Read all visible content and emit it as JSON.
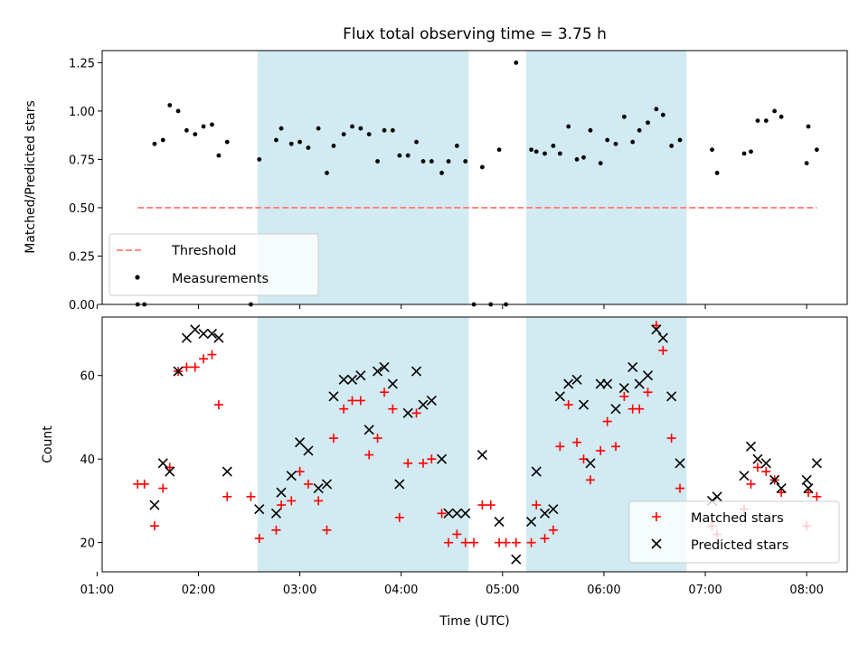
{
  "chart_data": [
    {
      "type": "scatter",
      "title": "Flux total observing time = 3.75 h",
      "xlabel": "",
      "ylabel": "Matched/Predicted stars",
      "xlim": [
        "01:03",
        "08:24"
      ],
      "ylim": [
        0,
        1.3125
      ],
      "yticks": [
        0.0,
        0.25,
        0.5,
        0.75,
        1.0,
        1.25
      ],
      "ytick_labels": [
        "0.00",
        "0.25",
        "0.50",
        "0.75",
        "1.00",
        "1.25"
      ],
      "shaded_intervals": [
        [
          "02:35",
          "04:40"
        ],
        [
          "05:14",
          "06:49"
        ]
      ],
      "shade_color": "#add8e6",
      "legend_position": "lower-left",
      "threshold": {
        "name": "Threshold",
        "value": 0.5,
        "x_range": [
          "01:24",
          "08:06"
        ],
        "color": "#ff7f7f",
        "style": "dashed"
      },
      "series": [
        {
          "name": "Measurements",
          "color": "#000000",
          "marker": "dot",
          "points": [
            [
              "01:24",
              0.0
            ],
            [
              "01:28",
              0.0
            ],
            [
              "01:34",
              0.83
            ],
            [
              "01:39",
              0.85
            ],
            [
              "01:43",
              1.03
            ],
            [
              "01:48",
              1.0
            ],
            [
              "01:53",
              0.9
            ],
            [
              "01:58",
              0.88
            ],
            [
              "02:03",
              0.92
            ],
            [
              "02:08",
              0.93
            ],
            [
              "02:12",
              0.77
            ],
            [
              "02:17",
              0.84
            ],
            [
              "02:31",
              0.0
            ],
            [
              "02:36",
              0.75
            ],
            [
              "02:46",
              0.85
            ],
            [
              "02:49",
              0.91
            ],
            [
              "02:55",
              0.83
            ],
            [
              "03:00",
              0.84
            ],
            [
              "03:05",
              0.81
            ],
            [
              "03:11",
              0.91
            ],
            [
              "03:16",
              0.68
            ],
            [
              "03:20",
              0.82
            ],
            [
              "03:26",
              0.88
            ],
            [
              "03:31",
              0.92
            ],
            [
              "03:36",
              0.91
            ],
            [
              "03:41",
              0.88
            ],
            [
              "03:46",
              0.74
            ],
            [
              "03:50",
              0.9
            ],
            [
              "03:55",
              0.9
            ],
            [
              "03:59",
              0.77
            ],
            [
              "04:04",
              0.77
            ],
            [
              "04:09",
              0.84
            ],
            [
              "04:13",
              0.74
            ],
            [
              "04:18",
              0.74
            ],
            [
              "04:24",
              0.68
            ],
            [
              "04:28",
              0.74
            ],
            [
              "04:33",
              0.82
            ],
            [
              "04:38",
              0.74
            ],
            [
              "04:43",
              0.0
            ],
            [
              "04:48",
              0.71
            ],
            [
              "04:53",
              0.0
            ],
            [
              "04:58",
              0.8
            ],
            [
              "05:02",
              0.0
            ],
            [
              "05:08",
              1.25
            ],
            [
              "05:17",
              0.8
            ],
            [
              "05:20",
              0.79
            ],
            [
              "05:25",
              0.78
            ],
            [
              "05:30",
              0.82
            ],
            [
              "05:34",
              0.78
            ],
            [
              "05:39",
              0.92
            ],
            [
              "05:44",
              0.75
            ],
            [
              "05:48",
              0.76
            ],
            [
              "05:52",
              0.9
            ],
            [
              "05:58",
              0.73
            ],
            [
              "06:02",
              0.85
            ],
            [
              "06:07",
              0.83
            ],
            [
              "06:12",
              0.97
            ],
            [
              "06:17",
              0.84
            ],
            [
              "06:21",
              0.9
            ],
            [
              "06:26",
              0.94
            ],
            [
              "06:31",
              1.01
            ],
            [
              "06:35",
              0.98
            ],
            [
              "06:40",
              0.82
            ],
            [
              "06:45",
              0.85
            ],
            [
              "07:04",
              0.8
            ],
            [
              "07:07",
              0.68
            ],
            [
              "07:23",
              0.78
            ],
            [
              "07:27",
              0.79
            ],
            [
              "07:31",
              0.95
            ],
            [
              "07:36",
              0.95
            ],
            [
              "07:41",
              1.0
            ],
            [
              "07:45",
              0.97
            ],
            [
              "08:00",
              0.73
            ],
            [
              "08:01",
              0.92
            ],
            [
              "08:06",
              0.8
            ]
          ]
        }
      ]
    },
    {
      "type": "scatter",
      "title": "",
      "xlabel": "Time (UTC)",
      "ylabel": "Count",
      "xlim": [
        "01:03",
        "08:24"
      ],
      "ylim": [
        13,
        74
      ],
      "yticks": [
        20,
        40,
        60
      ],
      "ytick_labels": [
        "20",
        "40",
        "60"
      ],
      "xticks": [
        "01:00",
        "02:00",
        "03:00",
        "04:00",
        "05:00",
        "06:00",
        "07:00",
        "08:00"
      ],
      "shaded_intervals": [
        [
          "02:35",
          "04:40"
        ],
        [
          "05:14",
          "06:49"
        ]
      ],
      "shade_color": "#add8e6",
      "legend_position": "lower-right",
      "series": [
        {
          "name": "Matched stars",
          "color": "#ff0000",
          "marker": "plus",
          "points": [
            [
              "01:24",
              34
            ],
            [
              "01:28",
              34
            ],
            [
              "01:34",
              24
            ],
            [
              "01:39",
              33
            ],
            [
              "01:43",
              38
            ],
            [
              "01:48",
              61
            ],
            [
              "01:53",
              62
            ],
            [
              "01:58",
              62
            ],
            [
              "02:03",
              64
            ],
            [
              "02:08",
              65
            ],
            [
              "02:12",
              53
            ],
            [
              "02:17",
              31
            ],
            [
              "02:31",
              31
            ],
            [
              "02:36",
              21
            ],
            [
              "02:46",
              23
            ],
            [
              "02:49",
              29
            ],
            [
              "02:55",
              30
            ],
            [
              "03:00",
              37
            ],
            [
              "03:05",
              34
            ],
            [
              "03:11",
              30
            ],
            [
              "03:16",
              23
            ],
            [
              "03:20",
              45
            ],
            [
              "03:26",
              52
            ],
            [
              "03:31",
              54
            ],
            [
              "03:36",
              54
            ],
            [
              "03:41",
              41
            ],
            [
              "03:46",
              45
            ],
            [
              "03:50",
              56
            ],
            [
              "03:55",
              52
            ],
            [
              "03:59",
              26
            ],
            [
              "04:04",
              39
            ],
            [
              "04:09",
              51
            ],
            [
              "04:13",
              39
            ],
            [
              "04:18",
              40
            ],
            [
              "04:24",
              27
            ],
            [
              "04:28",
              20
            ],
            [
              "04:33",
              22
            ],
            [
              "04:38",
              20
            ],
            [
              "04:43",
              20
            ],
            [
              "04:48",
              29
            ],
            [
              "04:53",
              29
            ],
            [
              "04:58",
              20
            ],
            [
              "05:02",
              20
            ],
            [
              "05:08",
              20
            ],
            [
              "05:17",
              20
            ],
            [
              "05:20",
              29
            ],
            [
              "05:25",
              21
            ],
            [
              "05:30",
              23
            ],
            [
              "05:34",
              43
            ],
            [
              "05:39",
              53
            ],
            [
              "05:44",
              44
            ],
            [
              "05:48",
              40
            ],
            [
              "05:52",
              35
            ],
            [
              "05:58",
              42
            ],
            [
              "06:02",
              49
            ],
            [
              "06:07",
              43
            ],
            [
              "06:12",
              55
            ],
            [
              "06:17",
              52
            ],
            [
              "06:21",
              52
            ],
            [
              "06:26",
              56
            ],
            [
              "06:31",
              72
            ],
            [
              "06:35",
              66
            ],
            [
              "06:40",
              45
            ],
            [
              "06:45",
              33
            ],
            [
              "07:04",
              24
            ],
            [
              "07:07",
              22
            ],
            [
              "07:23",
              28
            ],
            [
              "07:27",
              34
            ],
            [
              "07:31",
              38
            ],
            [
              "07:36",
              37
            ],
            [
              "07:41",
              35
            ],
            [
              "07:45",
              32
            ],
            [
              "08:00",
              24
            ],
            [
              "08:01",
              32
            ],
            [
              "08:06",
              31
            ]
          ]
        },
        {
          "name": "Predicted stars",
          "color": "#000000",
          "marker": "x",
          "points": [
            [
              "01:34",
              29
            ],
            [
              "01:39",
              39
            ],
            [
              "01:43",
              37
            ],
            [
              "01:48",
              61
            ],
            [
              "01:53",
              69
            ],
            [
              "01:58",
              71
            ],
            [
              "02:03",
              70
            ],
            [
              "02:08",
              70
            ],
            [
              "02:12",
              69
            ],
            [
              "02:17",
              37
            ],
            [
              "02:36",
              28
            ],
            [
              "02:46",
              27
            ],
            [
              "02:49",
              32
            ],
            [
              "02:55",
              36
            ],
            [
              "03:00",
              44
            ],
            [
              "03:05",
              42
            ],
            [
              "03:11",
              33
            ],
            [
              "03:16",
              34
            ],
            [
              "03:20",
              55
            ],
            [
              "03:26",
              59
            ],
            [
              "03:31",
              59
            ],
            [
              "03:36",
              60
            ],
            [
              "03:41",
              47
            ],
            [
              "03:46",
              61
            ],
            [
              "03:50",
              62
            ],
            [
              "03:55",
              58
            ],
            [
              "03:59",
              34
            ],
            [
              "04:04",
              51
            ],
            [
              "04:09",
              61
            ],
            [
              "04:13",
              53
            ],
            [
              "04:18",
              54
            ],
            [
              "04:24",
              40
            ],
            [
              "04:28",
              27
            ],
            [
              "04:33",
              27
            ],
            [
              "04:38",
              27
            ],
            [
              "04:48",
              41
            ],
            [
              "04:58",
              25
            ],
            [
              "05:08",
              16
            ],
            [
              "05:17",
              25
            ],
            [
              "05:20",
              37
            ],
            [
              "05:25",
              27
            ],
            [
              "05:30",
              28
            ],
            [
              "05:34",
              55
            ],
            [
              "05:39",
              58
            ],
            [
              "05:44",
              59
            ],
            [
              "05:48",
              53
            ],
            [
              "05:52",
              39
            ],
            [
              "05:58",
              58
            ],
            [
              "06:02",
              58
            ],
            [
              "06:07",
              52
            ],
            [
              "06:12",
              57
            ],
            [
              "06:17",
              62
            ],
            [
              "06:21",
              58
            ],
            [
              "06:26",
              60
            ],
            [
              "06:31",
              71
            ],
            [
              "06:35",
              69
            ],
            [
              "06:40",
              55
            ],
            [
              "06:45",
              39
            ],
            [
              "07:04",
              30
            ],
            [
              "07:07",
              31
            ],
            [
              "07:23",
              36
            ],
            [
              "07:27",
              43
            ],
            [
              "07:31",
              40
            ],
            [
              "07:36",
              39
            ],
            [
              "07:41",
              35
            ],
            [
              "07:45",
              33
            ],
            [
              "08:00",
              35
            ],
            [
              "08:01",
              33
            ],
            [
              "08:06",
              39
            ]
          ]
        }
      ]
    }
  ]
}
